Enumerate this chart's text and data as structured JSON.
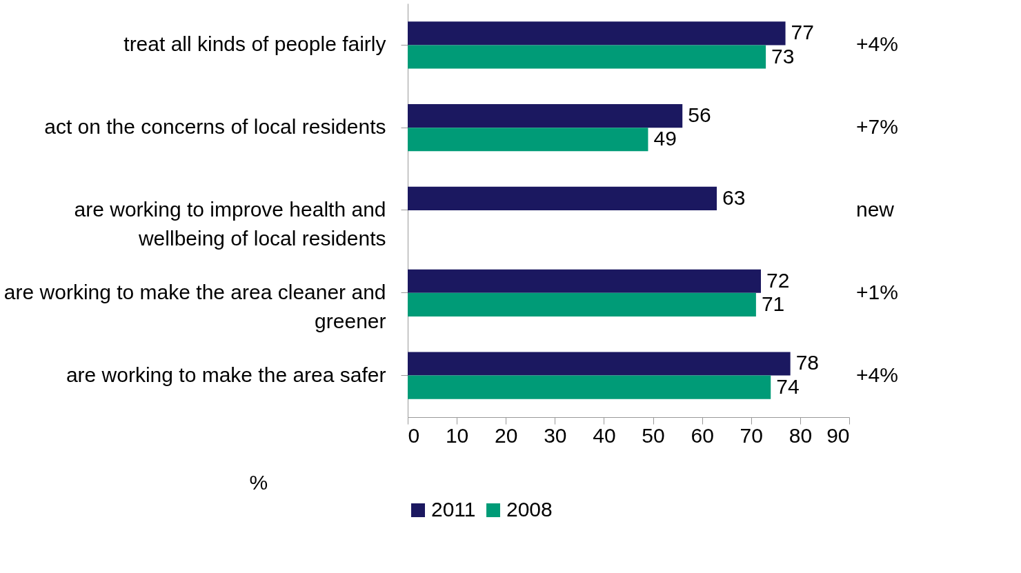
{
  "chart_data": {
    "type": "bar",
    "orientation": "horizontal",
    "categories": [
      "treat all kinds of people fairly",
      "act on the concerns of local residents",
      "are working to improve health and wellbeing of local residents",
      "are working to make the area cleaner and greener",
      "are working to make the area safer"
    ],
    "series": [
      {
        "name": "2011",
        "color": "#1b1860",
        "values": [
          77,
          56,
          63,
          72,
          78
        ]
      },
      {
        "name": "2008",
        "color": "#009b77",
        "values": [
          73,
          49,
          null,
          71,
          74
        ]
      }
    ],
    "xlim": [
      0,
      90
    ],
    "xticks": [
      0,
      10,
      20,
      30,
      40,
      50,
      60,
      70,
      80,
      90
    ],
    "xlabel": "%",
    "data_labels": true,
    "grid": false,
    "legend": "bottom",
    "annotations": [
      "+4%",
      "+7%",
      "new",
      "+1%",
      "+4%"
    ]
  }
}
